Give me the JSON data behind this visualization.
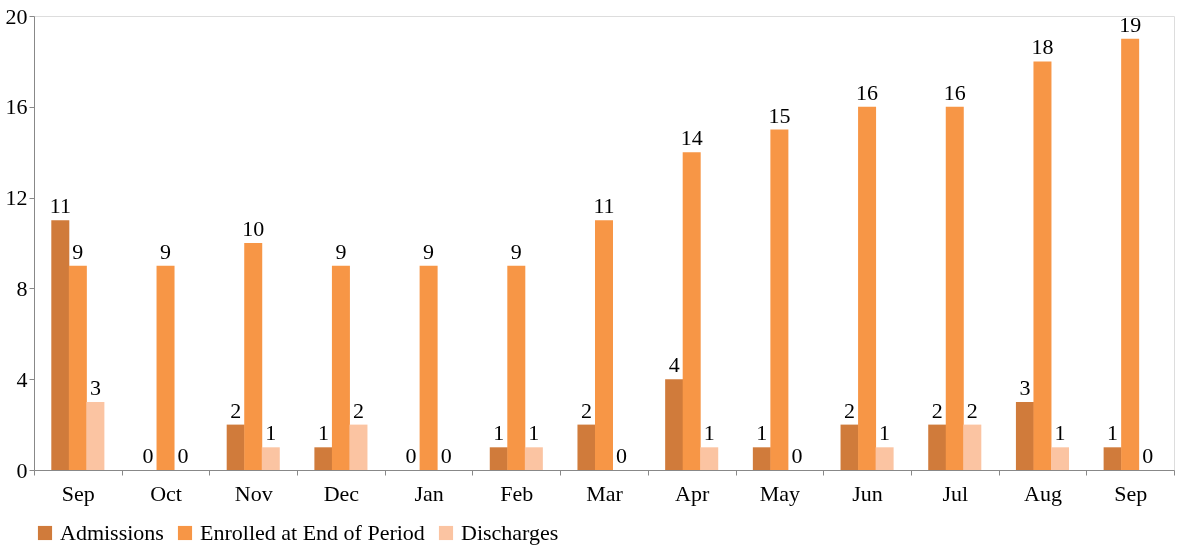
{
  "chart_data": {
    "type": "bar",
    "categories": [
      "Sep",
      "Oct",
      "Nov",
      "Dec",
      "Jan",
      "Feb",
      "Mar",
      "Apr",
      "May",
      "Jun",
      "Jul",
      "Aug",
      "Sep"
    ],
    "series": [
      {
        "name": "Admissions",
        "color": "#d07b3b",
        "values": [
          11,
          0,
          2,
          1,
          0,
          1,
          2,
          4,
          1,
          2,
          2,
          3,
          1
        ]
      },
      {
        "name": "Enrolled at End of Period",
        "color": "#f79646",
        "values": [
          9,
          9,
          10,
          9,
          9,
          9,
          11,
          14,
          15,
          16,
          16,
          18,
          19
        ]
      },
      {
        "name": "Discharges",
        "color": "#fbc4a2",
        "values": [
          3,
          0,
          1,
          2,
          0,
          1,
          0,
          1,
          0,
          1,
          2,
          1,
          0
        ]
      }
    ],
    "ylim": [
      0,
      20
    ],
    "yticks": [
      0,
      4,
      8,
      12,
      16,
      20
    ],
    "grid": false,
    "legend": "bottom",
    "data_labels": true
  }
}
